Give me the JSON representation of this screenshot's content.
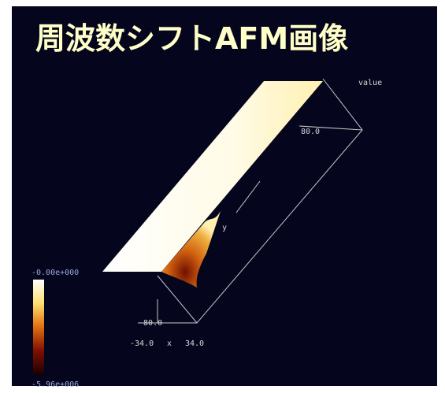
{
  "title": "周波数シフトAFM画像",
  "plot": {
    "value_label": "value",
    "y_max": "80.0",
    "y_label": "y",
    "y_min": "-80.0",
    "x_min": "-34.0",
    "x_label": "x",
    "x_max": "34.0"
  },
  "colorbar": {
    "max": "-0.00e+000",
    "min": "-5.96e+006"
  }
}
